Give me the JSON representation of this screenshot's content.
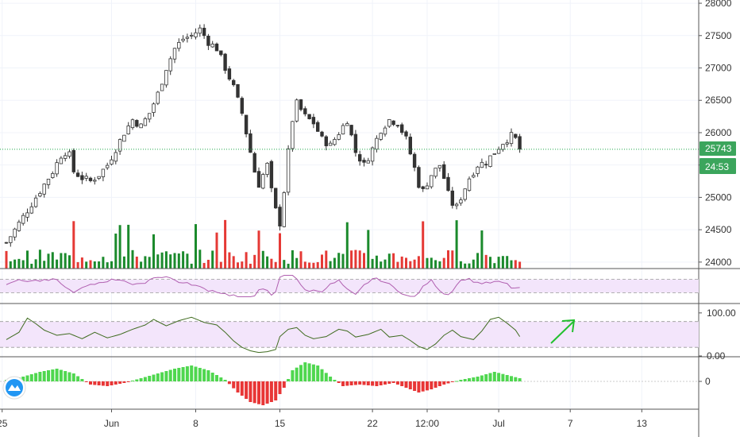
{
  "chart_data": {
    "type": "candlestick",
    "price": {
      "ylim": [
        23900,
        28050
      ],
      "yticks": [
        "28000",
        "27500",
        "27000",
        "26500",
        "26000",
        "25500",
        "25000",
        "24500",
        "24000"
      ],
      "last_price_label": "25743",
      "countdown_label": "24:53",
      "last_price": 25743,
      "close_path": [
        [
          0,
          24300
        ],
        [
          3,
          24600
        ],
        [
          6,
          24900
        ],
        [
          9,
          25200
        ],
        [
          11,
          25400
        ],
        [
          13,
          25650
        ],
        [
          14,
          25700
        ],
        [
          15,
          25650
        ],
        [
          16,
          25400
        ],
        [
          18,
          25300
        ],
        [
          20,
          25250
        ],
        [
          22,
          25350
        ],
        [
          24,
          25500
        ],
        [
          26,
          25750
        ],
        [
          28,
          26000
        ],
        [
          30,
          26200
        ],
        [
          32,
          26100
        ],
        [
          34,
          26300
        ],
        [
          36,
          26600
        ],
        [
          38,
          27000
        ],
        [
          40,
          27300
        ],
        [
          42,
          27450
        ],
        [
          44,
          27500
        ],
        [
          46,
          27600
        ],
        [
          48,
          27400
        ],
        [
          50,
          27300
        ],
        [
          52,
          27000
        ],
        [
          54,
          26700
        ],
        [
          56,
          26300
        ],
        [
          58,
          25700
        ],
        [
          59,
          25400
        ],
        [
          60,
          25200
        ],
        [
          62,
          25500
        ],
        [
          63,
          25100
        ],
        [
          64,
          24800
        ],
        [
          65,
          24600
        ],
        [
          66,
          25100
        ],
        [
          67,
          25700
        ],
        [
          68,
          26200
        ],
        [
          69,
          26450
        ],
        [
          71,
          26250
        ],
        [
          73,
          26150
        ],
        [
          75,
          25900
        ],
        [
          77,
          25800
        ],
        [
          79,
          26000
        ],
        [
          81,
          26200
        ],
        [
          83,
          25700
        ],
        [
          85,
          25500
        ],
        [
          87,
          25750
        ],
        [
          89,
          26050
        ],
        [
          91,
          26200
        ],
        [
          93,
          26150
        ],
        [
          95,
          25900
        ],
        [
          97,
          25450
        ],
        [
          98,
          25200
        ],
        [
          99,
          25100
        ],
        [
          101,
          25350
        ],
        [
          103,
          25500
        ],
        [
          104,
          25300
        ],
        [
          105,
          25050
        ],
        [
          106,
          24900
        ],
        [
          107,
          24850
        ],
        [
          108,
          25000
        ],
        [
          110,
          25300
        ],
        [
          112,
          25500
        ],
        [
          114,
          25550
        ],
        [
          116,
          25700
        ],
        [
          118,
          25850
        ],
        [
          120,
          25950
        ],
        [
          121,
          25900
        ],
        [
          122,
          25743
        ]
      ],
      "volume_ylim": [
        0,
        1
      ]
    },
    "rsi": {
      "band": [
        30,
        70
      ],
      "ylim": [
        0,
        100
      ]
    },
    "stoch": {
      "yticks": [
        "100.00",
        "0.00"
      ],
      "band": [
        20,
        80
      ],
      "ylim": [
        0,
        120
      ],
      "path": [
        [
          0,
          38
        ],
        [
          3,
          55
        ],
        [
          5,
          88
        ],
        [
          7,
          75
        ],
        [
          9,
          60
        ],
        [
          12,
          48
        ],
        [
          15,
          52
        ],
        [
          18,
          40
        ],
        [
          21,
          55
        ],
        [
          24,
          42
        ],
        [
          27,
          50
        ],
        [
          30,
          62
        ],
        [
          33,
          72
        ],
        [
          35,
          85
        ],
        [
          38,
          70
        ],
        [
          41,
          82
        ],
        [
          44,
          90
        ],
        [
          47,
          78
        ],
        [
          50,
          72
        ],
        [
          52,
          55
        ],
        [
          54,
          35
        ],
        [
          56,
          20
        ],
        [
          58,
          12
        ],
        [
          60,
          8
        ],
        [
          62,
          10
        ],
        [
          64,
          15
        ],
        [
          65,
          45
        ],
        [
          67,
          62
        ],
        [
          69,
          66
        ],
        [
          71,
          48
        ],
        [
          73,
          40
        ],
        [
          76,
          45
        ],
        [
          79,
          62
        ],
        [
          81,
          58
        ],
        [
          83,
          44
        ],
        [
          86,
          50
        ],
        [
          89,
          62
        ],
        [
          91,
          44
        ],
        [
          94,
          48
        ],
        [
          96,
          36
        ],
        [
          98,
          22
        ],
        [
          100,
          15
        ],
        [
          102,
          28
        ],
        [
          104,
          48
        ],
        [
          106,
          60
        ],
        [
          108,
          45
        ],
        [
          111,
          38
        ],
        [
          113,
          58
        ],
        [
          115,
          85
        ],
        [
          117,
          90
        ],
        [
          119,
          76
        ],
        [
          121,
          60
        ],
        [
          122,
          45
        ]
      ]
    },
    "macd": {
      "yticks": [
        "0"
      ],
      "ylim": [
        -1,
        1
      ]
    },
    "x_axis": {
      "labels": [
        "25",
        "Jun",
        "8",
        "15",
        "22",
        "12:00",
        "Jul",
        "7",
        "13"
      ],
      "label_index": [
        -1,
        25,
        45,
        65,
        87,
        100,
        117,
        134,
        151
      ],
      "total_bars_visible": 166
    },
    "colors": {
      "up": "#26a69a",
      "down": "#ef5350",
      "vol_up": "#1b8a2c",
      "vol_down": "#e53935",
      "candle": "#333333",
      "rsi_line": "#b05fb0",
      "band_fill": "#f3e5fb",
      "stoch_line": "#3f6b1f",
      "price_line": "#1ea84a",
      "badge": "#3ba55c",
      "arrow": "#22c02e"
    }
  }
}
